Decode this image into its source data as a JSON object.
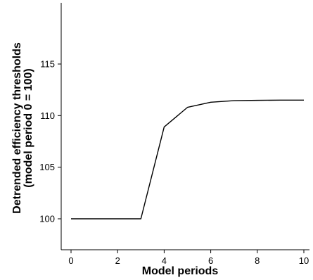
{
  "chart_data": {
    "type": "line",
    "title": "",
    "xlabel": "Model periods",
    "ylabel_lines": [
      "Detrended efficiency thresholds",
      "(model period 0 = 100)"
    ],
    "xlim": [
      -0.5,
      10
    ],
    "ylim": [
      97,
      118
    ],
    "x_ticks": [
      0,
      2,
      4,
      6,
      8,
      10
    ],
    "y_ticks": [
      100,
      105,
      110,
      115
    ],
    "grid": false,
    "series": [
      {
        "x": [
          0,
          1,
          2,
          3,
          4,
          5,
          6,
          7,
          8,
          9,
          10
        ],
        "y": [
          100,
          100,
          100,
          100,
          108.9,
          110.8,
          111.3,
          111.45,
          111.48,
          111.5,
          111.5
        ],
        "color": "#000000"
      }
    ]
  }
}
